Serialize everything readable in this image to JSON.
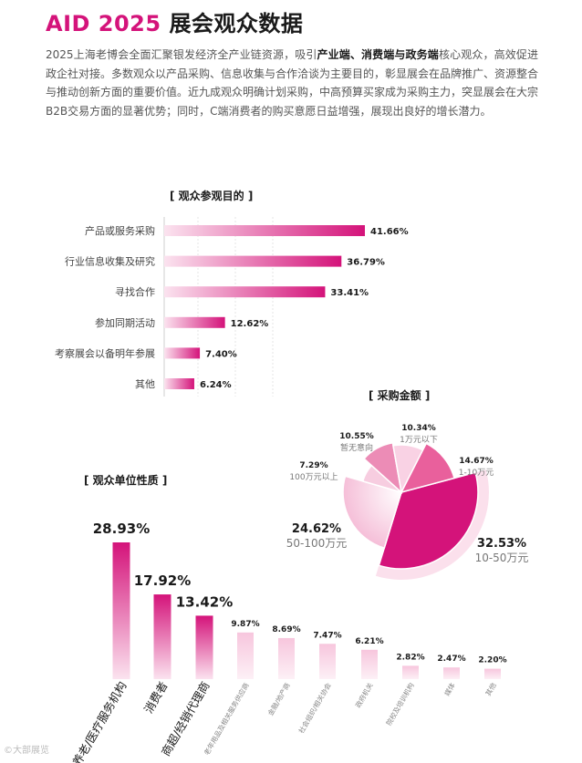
{
  "page": {
    "title_prefix": "AID 2025",
    "title_rest": "展会观众数据",
    "intro_parts": [
      {
        "text": "2025上海老博会全面汇聚银发经济全产业链资源，吸引",
        "bold": false
      },
      {
        "text": "产业端、消费端与政务端",
        "bold": true
      },
      {
        "text": "核心观众，高效促进政企社对接。多数观众以产品采购、信息收集与合作洽谈为主要目的，彰显展会在品牌推广、资源整合与推动创新方面的重要价值。近九成观众明确计划采购，中高预算买家成为采购主力，突显展会在大宗B2B交易方面的显著优势；同时，C端消费者的购买意愿日益增强，展现出良好的增长潜力。",
        "bold": false
      }
    ],
    "watermark": "©大部展览"
  },
  "accent_color": "#d4137a",
  "chart_data": [
    {
      "type": "bar",
      "orientation": "horizontal",
      "title": "[ 观众参观目的 ]",
      "categories": [
        "产品或服务采购",
        "行业信息收集及研究",
        "寻找合作",
        "参加同期活动",
        "考察展会以备明年参展",
        "其他"
      ],
      "values": [
        41.66,
        36.79,
        33.41,
        12.62,
        7.4,
        6.24
      ],
      "value_labels": [
        "41.66%",
        "36.79%",
        "33.41%",
        "12.62%",
        "7.40%",
        "6.24%"
      ],
      "unit": "%",
      "grid": true
    },
    {
      "type": "pie",
      "variant": "rose",
      "title": "[ 采购金额 ]",
      "slices": [
        {
          "pct": "32.53%",
          "label": "10-50万元",
          "value": 32.53
        },
        {
          "pct": "24.62%",
          "label": "50-100万元",
          "value": 24.62
        },
        {
          "pct": "7.29%",
          "label": "100万元以上",
          "value": 7.29
        },
        {
          "pct": "10.55%",
          "label": "暂无意向",
          "value": 10.55
        },
        {
          "pct": "10.34%",
          "label": "1万元以下",
          "value": 10.34
        },
        {
          "pct": "14.67%",
          "label": "1-10万元",
          "value": 14.67
        }
      ]
    },
    {
      "type": "bar",
      "orientation": "vertical",
      "title": "[ 观众单位性质 ]",
      "categories": [
        "养老/医疗服务机构",
        "消费者",
        "商超/经销代理商",
        "老年用品及相关服务供应商",
        "金融/地产商",
        "社会组织/相关协会",
        "政府机关",
        "院校及培训机构",
        "媒体",
        "其他"
      ],
      "values": [
        28.93,
        17.92,
        13.42,
        9.87,
        8.69,
        7.47,
        6.21,
        2.82,
        2.47,
        2.2
      ],
      "value_labels": [
        "28.93%",
        "17.92%",
        "13.42%",
        "9.87%",
        "8.69%",
        "7.47%",
        "6.21%",
        "2.82%",
        "2.47%",
        "2.20%"
      ],
      "unit": "%"
    }
  ]
}
